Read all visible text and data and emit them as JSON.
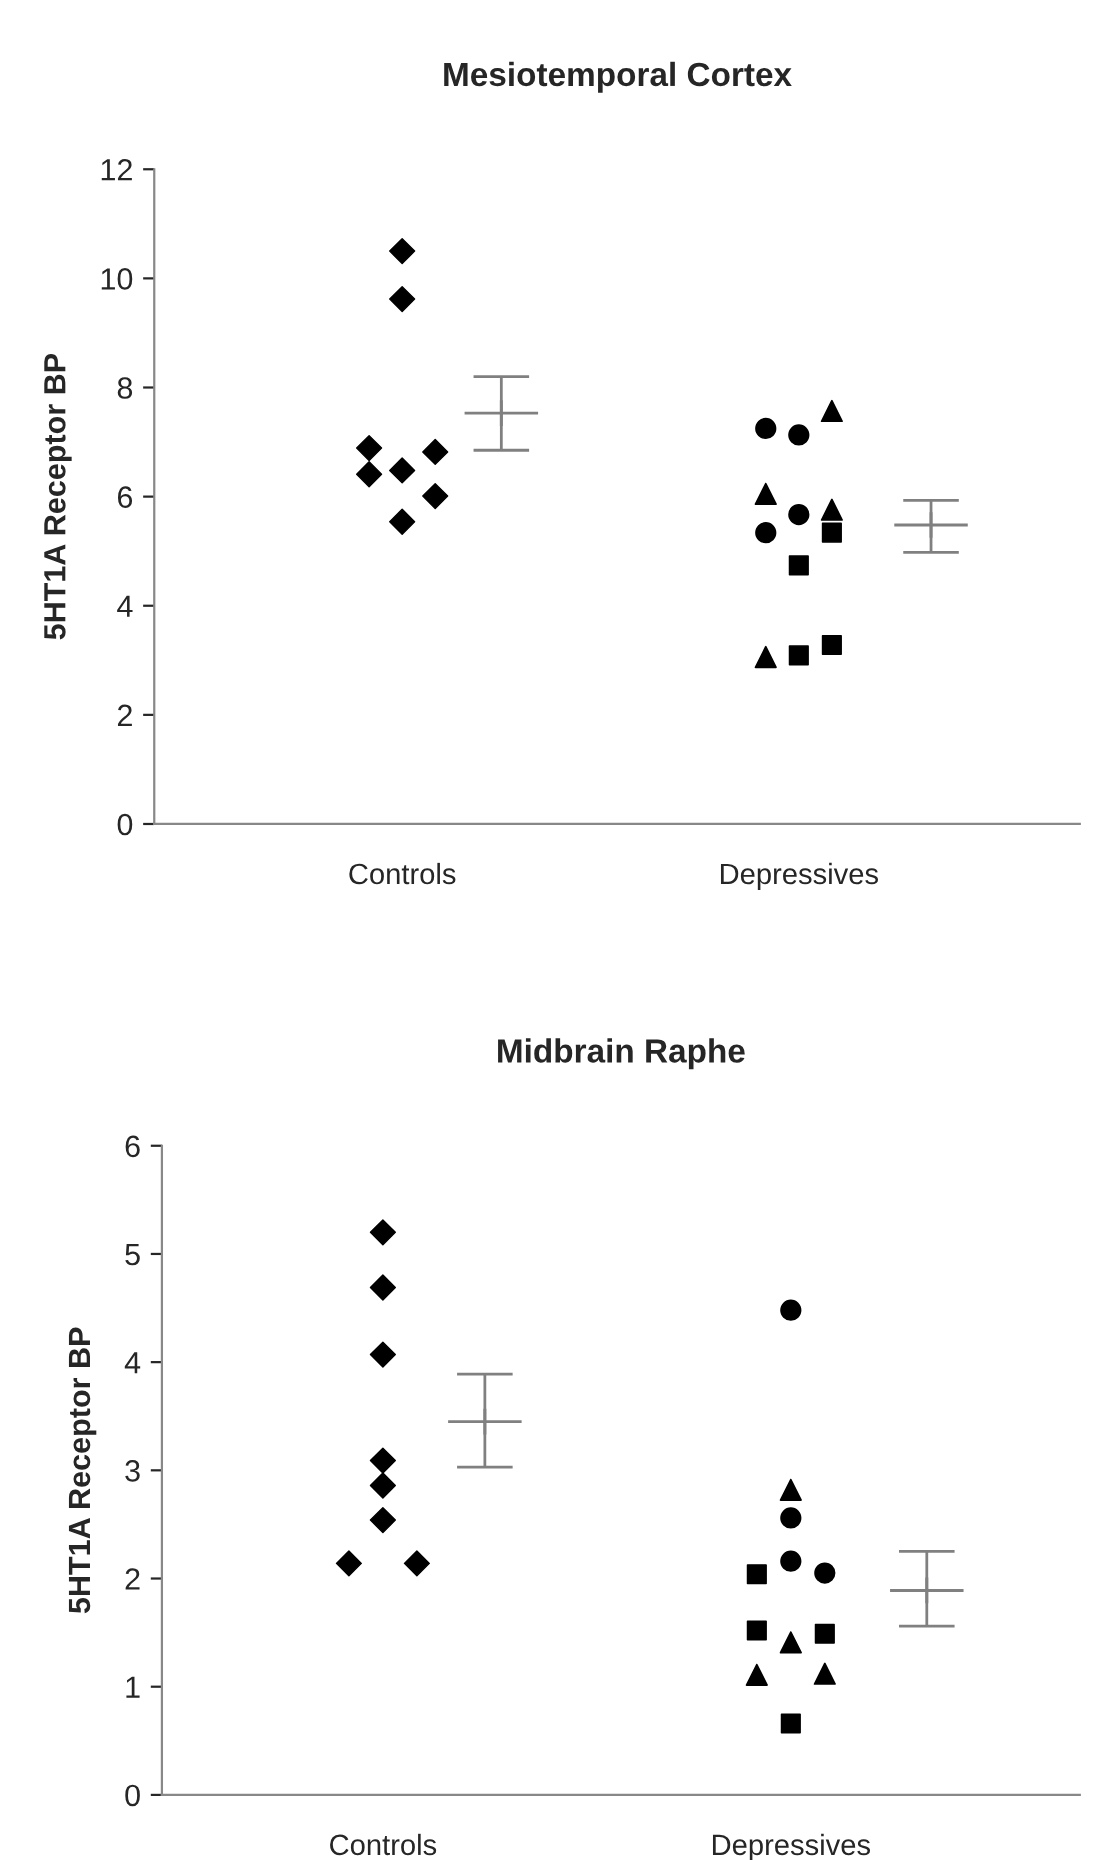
{
  "chart_data": [
    {
      "type": "scatter",
      "title": "Mesiotemporal Cortex",
      "ylabel": "5HT1A Receptor BP",
      "categories": [
        null,
        null,
        null,
        null,
        null,
        null,
        null,
        "Controls",
        null,
        null,
        null,
        null,
        null,
        null,
        null,
        null,
        null,
        null,
        null,
        "Depressives",
        null,
        null,
        null,
        null,
        null,
        null,
        null,
        null
      ],
      "ylim": [
        0,
        12
      ],
      "yticks": [
        0,
        2,
        4,
        6,
        8,
        10,
        12
      ],
      "grid": false,
      "legend": false,
      "series": [
        {
          "color": "#000000",
          "marker": "diamond",
          "values": [
            null,
            null,
            null,
            null,
            null,
            null,
            6.89,
            10.5,
            6.82,
            null,
            null,
            null,
            null,
            null,
            null,
            null,
            null,
            null,
            null,
            null,
            null,
            null,
            null,
            null,
            null,
            null,
            null,
            null
          ]
        },
        {
          "color": "#000000",
          "marker": "diamond",
          "values": [
            null,
            null,
            null,
            null,
            null,
            null,
            6.41,
            9.62,
            6.01,
            null,
            null,
            null,
            null,
            null,
            null,
            null,
            null,
            null,
            null,
            null,
            null,
            null,
            null,
            null,
            null,
            null,
            null,
            null
          ]
        },
        {
          "color": "#000000",
          "marker": "diamond",
          "values": [
            null,
            null,
            null,
            null,
            null,
            null,
            null,
            6.48,
            null,
            null,
            null,
            null,
            null,
            null,
            null,
            null,
            null,
            null,
            null,
            null,
            null,
            null,
            null,
            null,
            null,
            null,
            null,
            null
          ]
        },
        {
          "color": "#000000",
          "marker": "diamond",
          "values": [
            null,
            null,
            null,
            null,
            null,
            null,
            null,
            5.54,
            null,
            null,
            null,
            null,
            null,
            null,
            null,
            null,
            null,
            null,
            null,
            null,
            null,
            null,
            null,
            null,
            null,
            null,
            null,
            null
          ]
        },
        {
          "color": "#000000",
          "marker": "circle",
          "values": [
            null,
            null,
            null,
            null,
            null,
            null,
            null,
            null,
            null,
            null,
            null,
            null,
            null,
            null,
            null,
            null,
            null,
            null,
            7.25,
            7.13,
            null,
            null,
            null,
            null,
            null,
            null,
            null,
            null
          ]
        },
        {
          "color": "#000000",
          "marker": "circle",
          "values": [
            null,
            null,
            null,
            null,
            null,
            null,
            null,
            null,
            null,
            null,
            null,
            null,
            null,
            null,
            null,
            null,
            null,
            null,
            5.34,
            5.67,
            null,
            null,
            null,
            null,
            null,
            null,
            null,
            null
          ]
        },
        {
          "color": "#000000",
          "marker": "triangle",
          "values": [
            null,
            null,
            null,
            null,
            null,
            null,
            null,
            null,
            null,
            null,
            null,
            null,
            null,
            null,
            null,
            null,
            null,
            null,
            6.05,
            null,
            7.57,
            null,
            null,
            null,
            null,
            null,
            null,
            null
          ]
        },
        {
          "color": "#000000",
          "marker": "triangle",
          "values": [
            null,
            null,
            null,
            null,
            null,
            null,
            null,
            null,
            null,
            null,
            null,
            null,
            null,
            null,
            null,
            null,
            null,
            null,
            3.06,
            null,
            5.76,
            null,
            null,
            null,
            null,
            null,
            null,
            null
          ]
        },
        {
          "color": "#000000",
          "marker": "square",
          "values": [
            null,
            null,
            null,
            null,
            null,
            null,
            null,
            null,
            null,
            null,
            null,
            null,
            null,
            null,
            null,
            null,
            null,
            null,
            null,
            4.74,
            5.34,
            null,
            null,
            null,
            null,
            null,
            null,
            null
          ]
        },
        {
          "color": "#000000",
          "marker": "square",
          "values": [
            null,
            null,
            null,
            null,
            null,
            null,
            null,
            null,
            null,
            null,
            null,
            null,
            null,
            null,
            null,
            null,
            null,
            null,
            null,
            3.09,
            3.28,
            null,
            null,
            null,
            null,
            null,
            null,
            null
          ]
        },
        {
          "color": "#808080",
          "marker": "cross",
          "values": [
            null,
            null,
            null,
            null,
            null,
            null,
            null,
            null,
            null,
            null,
            7.53,
            null,
            null,
            null,
            null,
            null,
            null,
            null,
            null,
            null,
            null,
            null,
            null,
            5.48,
            null,
            null,
            null,
            null
          ],
          "errors": [
            null,
            null,
            null,
            null,
            null,
            null,
            null,
            null,
            null,
            null,
            [
              6.85,
              8.2
            ],
            null,
            null,
            null,
            null,
            null,
            null,
            null,
            null,
            null,
            null,
            null,
            null,
            [
              4.98,
              5.93
            ],
            null,
            null,
            null,
            null
          ]
        }
      ]
    },
    {
      "type": "scatter",
      "title": "Midbrain Raphe",
      "ylabel": "5HT1A Receptor BP",
      "categories": [
        null,
        null,
        null,
        null,
        null,
        null,
        "Controls",
        null,
        null,
        null,
        null,
        null,
        null,
        null,
        null,
        null,
        null,
        null,
        "Depressives",
        null,
        null,
        null,
        null,
        null,
        null,
        null,
        null
      ],
      "ylim": [
        0,
        6
      ],
      "yticks": [
        0,
        1,
        2,
        3,
        4,
        5,
        6
      ],
      "grid": false,
      "legend": false,
      "series": [
        {
          "color": "#000000",
          "marker": "diamond",
          "values": [
            null,
            null,
            null,
            null,
            null,
            2.14,
            5.2,
            2.14,
            null,
            null,
            null,
            null,
            null,
            null,
            null,
            null,
            null,
            null,
            null,
            null,
            null,
            null,
            null,
            null,
            null,
            null,
            null
          ]
        },
        {
          "color": "#000000",
          "marker": "diamond",
          "values": [
            null,
            null,
            null,
            null,
            null,
            null,
            4.69,
            null,
            null,
            null,
            null,
            null,
            null,
            null,
            null,
            null,
            null,
            null,
            null,
            null,
            null,
            null,
            null,
            null,
            null,
            null,
            null
          ]
        },
        {
          "color": "#000000",
          "marker": "diamond",
          "values": [
            null,
            null,
            null,
            null,
            null,
            null,
            4.07,
            null,
            null,
            null,
            null,
            null,
            null,
            null,
            null,
            null,
            null,
            null,
            null,
            null,
            null,
            null,
            null,
            null,
            null,
            null,
            null
          ]
        },
        {
          "color": "#000000",
          "marker": "diamond",
          "values": [
            null,
            null,
            null,
            null,
            null,
            null,
            3.09,
            null,
            null,
            null,
            null,
            null,
            null,
            null,
            null,
            null,
            null,
            null,
            null,
            null,
            null,
            null,
            null,
            null,
            null,
            null,
            null
          ]
        },
        {
          "color": "#000000",
          "marker": "diamond",
          "values": [
            null,
            null,
            null,
            null,
            null,
            null,
            2.86,
            null,
            null,
            null,
            null,
            null,
            null,
            null,
            null,
            null,
            null,
            null,
            null,
            null,
            null,
            null,
            null,
            null,
            null,
            null,
            null
          ]
        },
        {
          "color": "#000000",
          "marker": "diamond",
          "values": [
            null,
            null,
            null,
            null,
            null,
            null,
            2.54,
            null,
            null,
            null,
            null,
            null,
            null,
            null,
            null,
            null,
            null,
            null,
            null,
            null,
            null,
            null,
            null,
            null,
            null,
            null,
            null
          ]
        },
        {
          "color": "#000000",
          "marker": "circle",
          "values": [
            null,
            null,
            null,
            null,
            null,
            null,
            null,
            null,
            null,
            null,
            null,
            null,
            null,
            null,
            null,
            null,
            null,
            null,
            4.48,
            2.05,
            null,
            null,
            null,
            null,
            null,
            null,
            null
          ]
        },
        {
          "color": "#000000",
          "marker": "circle",
          "values": [
            null,
            null,
            null,
            null,
            null,
            null,
            null,
            null,
            null,
            null,
            null,
            null,
            null,
            null,
            null,
            null,
            null,
            null,
            2.56,
            null,
            null,
            null,
            null,
            null,
            null,
            null,
            null
          ]
        },
        {
          "color": "#000000",
          "marker": "circle",
          "values": [
            null,
            null,
            null,
            null,
            null,
            null,
            null,
            null,
            null,
            null,
            null,
            null,
            null,
            null,
            null,
            null,
            null,
            null,
            2.16,
            null,
            null,
            null,
            null,
            null,
            null,
            null,
            null
          ]
        },
        {
          "color": "#000000",
          "marker": "triangle",
          "values": [
            null,
            null,
            null,
            null,
            null,
            null,
            null,
            null,
            null,
            null,
            null,
            null,
            null,
            null,
            null,
            null,
            null,
            1.11,
            2.82,
            1.12,
            null,
            null,
            null,
            null,
            null,
            null,
            null
          ]
        },
        {
          "color": "#000000",
          "marker": "triangle",
          "values": [
            null,
            null,
            null,
            null,
            null,
            null,
            null,
            null,
            null,
            null,
            null,
            null,
            null,
            null,
            null,
            null,
            null,
            null,
            1.41,
            null,
            null,
            null,
            null,
            null,
            null,
            null,
            null
          ]
        },
        {
          "color": "#000000",
          "marker": "square",
          "values": [
            null,
            null,
            null,
            null,
            null,
            null,
            null,
            null,
            null,
            null,
            null,
            null,
            null,
            null,
            null,
            null,
            null,
            2.04,
            0.66,
            1.49,
            null,
            null,
            null,
            null,
            null,
            null,
            null
          ]
        },
        {
          "color": "#000000",
          "marker": "square",
          "values": [
            null,
            null,
            null,
            null,
            null,
            null,
            null,
            null,
            null,
            null,
            null,
            null,
            null,
            null,
            null,
            null,
            null,
            1.52,
            null,
            null,
            null,
            null,
            null,
            null,
            null,
            null,
            null
          ]
        },
        {
          "color": "#808080",
          "marker": "cross",
          "values": [
            null,
            null,
            null,
            null,
            null,
            null,
            null,
            null,
            null,
            3.45,
            null,
            null,
            null,
            null,
            null,
            null,
            null,
            null,
            null,
            null,
            null,
            null,
            1.89,
            null,
            null,
            null,
            null
          ],
          "errors": [
            null,
            null,
            null,
            null,
            null,
            null,
            null,
            null,
            null,
            [
              3.03,
              3.89
            ],
            null,
            null,
            null,
            null,
            null,
            null,
            null,
            null,
            null,
            null,
            null,
            null,
            [
              1.56,
              2.25
            ],
            null,
            null,
            null,
            null
          ]
        }
      ]
    }
  ]
}
